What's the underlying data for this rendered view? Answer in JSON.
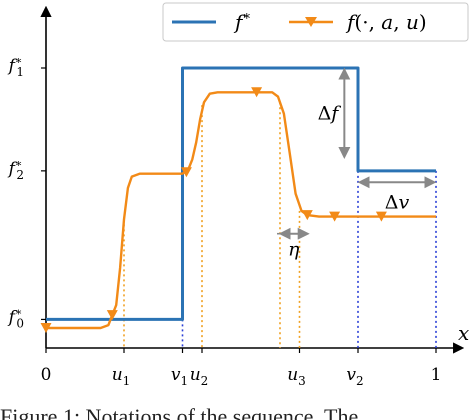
{
  "chart_data": {
    "type": "line",
    "xlabel": "x",
    "ylabel": "",
    "xlim": [
      0,
      1
    ],
    "ylim": [
      0,
      1.19
    ],
    "grid": false,
    "legend_position": "top-right",
    "colors": {
      "f_star": "#2b73b4",
      "f_hat": "#f28a17",
      "dotted_orange": "#f0a020",
      "dotted_blue": "#2b3fd6",
      "annotation": "#888888"
    },
    "x_ticks": [
      {
        "label": "0",
        "x": 0.0
      },
      {
        "label": "u_1",
        "x": 0.2
      },
      {
        "label": "v_1",
        "x": 0.35
      },
      {
        "label": "u_2",
        "x": 0.4
      },
      {
        "label": "u_3",
        "x": 0.65
      },
      {
        "label": "v_2",
        "x": 0.8
      },
      {
        "label": "1",
        "x": 1.0
      }
    ],
    "y_ticks": [
      {
        "label": "f_0^*",
        "y": 0.1
      },
      {
        "label": "f_2^*",
        "y": 0.62
      },
      {
        "label": "f_1^*",
        "y": 0.98
      }
    ],
    "series": [
      {
        "name": "f^*",
        "style": "step",
        "points": [
          [
            0,
            0.1
          ],
          [
            0.35,
            0.1
          ],
          [
            0.35,
            0.98
          ],
          [
            0.8,
            0.98
          ],
          [
            0.8,
            0.62
          ],
          [
            1.0,
            0.62
          ]
        ]
      },
      {
        "name": "f(·,a,u)",
        "style": "line-with-triangle-markers",
        "points": [
          [
            0.0,
            0.07
          ],
          [
            0.14,
            0.07
          ],
          [
            0.16,
            0.08
          ],
          [
            0.18,
            0.15
          ],
          [
            0.19,
            0.28
          ],
          [
            0.2,
            0.45
          ],
          [
            0.21,
            0.56
          ],
          [
            0.22,
            0.6
          ],
          [
            0.24,
            0.61
          ],
          [
            0.35,
            0.61
          ],
          [
            0.365,
            0.625
          ],
          [
            0.375,
            0.66
          ],
          [
            0.385,
            0.72
          ],
          [
            0.395,
            0.8
          ],
          [
            0.405,
            0.86
          ],
          [
            0.42,
            0.89
          ],
          [
            0.44,
            0.895
          ],
          [
            0.58,
            0.895
          ],
          [
            0.595,
            0.88
          ],
          [
            0.61,
            0.82
          ],
          [
            0.625,
            0.68
          ],
          [
            0.64,
            0.54
          ],
          [
            0.655,
            0.48
          ],
          [
            0.67,
            0.465
          ],
          [
            0.7,
            0.46
          ],
          [
            1.0,
            0.46
          ]
        ],
        "markers": [
          [
            0.0,
            0.07
          ],
          [
            0.17,
            0.115
          ],
          [
            0.36,
            0.615
          ],
          [
            0.54,
            0.895
          ],
          [
            0.67,
            0.465
          ],
          [
            0.74,
            0.46
          ],
          [
            0.86,
            0.46
          ]
        ]
      }
    ],
    "annotations": [
      {
        "label": "Δf",
        "between": "f^* and f(·,a,u) at x in [0.65, 0.8]"
      },
      {
        "label": "Δv",
        "between": "v_2 and 1"
      },
      {
        "label": "η",
        "between": "u_3 and end of f(·,a,u) transition"
      }
    ],
    "caption_fragment": "Figure 1: Notations of the sequence. The"
  }
}
